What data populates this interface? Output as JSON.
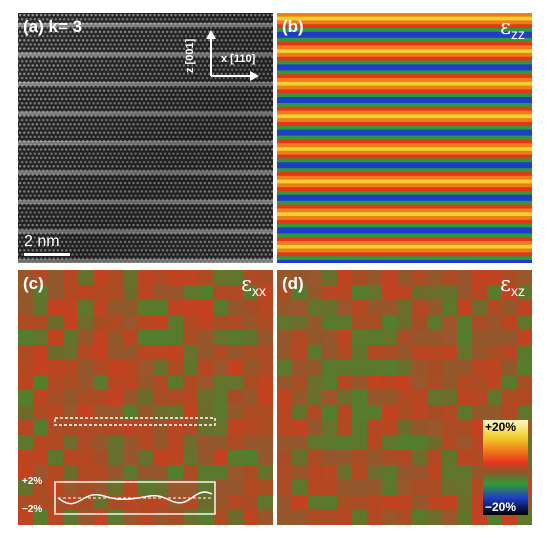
{
  "panels": {
    "a": {
      "label": "(a) k= 3",
      "scalebar": "2 nm",
      "axis_z": "z [001]",
      "axis_x": "x [110]"
    },
    "b": {
      "label": "(b)",
      "symbol": "ε",
      "sub": "zz"
    },
    "c": {
      "label": "(c)",
      "symbol": "ε",
      "sub": "xx",
      "profile_top": "+2%",
      "profile_bottom": "−2%"
    },
    "d": {
      "label": "(d)",
      "symbol": "ε",
      "sub": "xz"
    }
  },
  "colorbar": {
    "max": "+20%",
    "min": "−20%"
  },
  "colors": {
    "lattice_bright": "#e8e8e8",
    "map_base": "#a0552d",
    "map_red": "#d83a1c",
    "map_green": "#3f8c2e",
    "band_blue": "#1f3dc8",
    "band_green": "#2f9a3a",
    "band_yellow": "#f0d030",
    "band_orange": "#ef7d1a",
    "band_red": "#e4361b"
  }
}
